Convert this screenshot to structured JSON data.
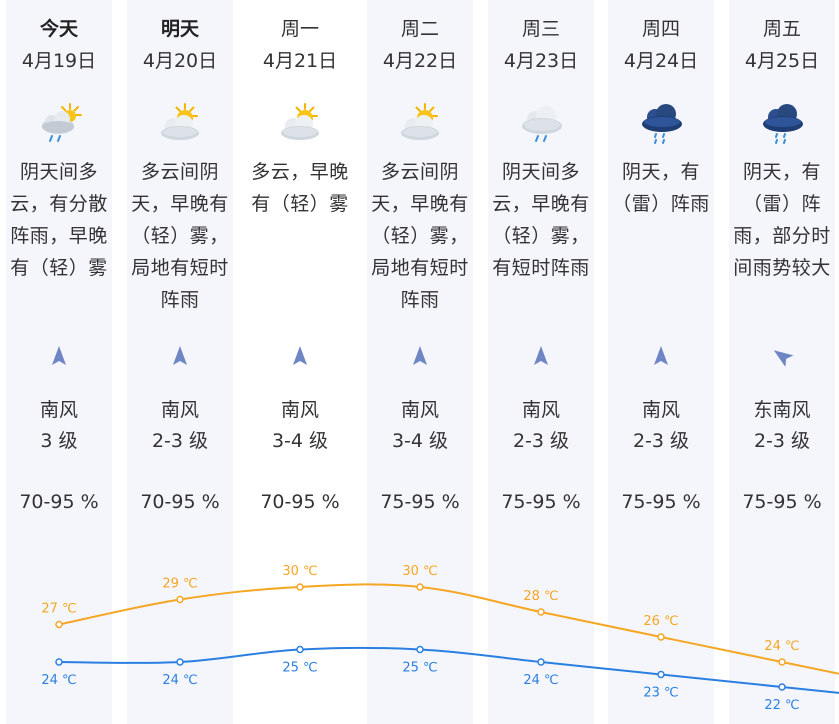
{
  "colors": {
    "high": "#f5a623",
    "low": "#2b7fe0",
    "column_shade": "#f4f6fc",
    "wind_arrow": "#6f86c4"
  },
  "days": [
    {
      "name": "今天",
      "date": "4月19日",
      "icon": "partly-cloudy-rain-icon",
      "desc_lines": [
        "阴天间多",
        "云，有分散",
        "阵雨，早晚",
        "有（轻）雾"
      ],
      "wind_icon": "wind-arrow-north-icon",
      "wind_angle": 0,
      "wind_dir": "南风",
      "wind_level": "3 级",
      "humidity": "70-95 %",
      "high": "27 ℃",
      "low": "24 ℃"
    },
    {
      "name": "明天",
      "date": "4月20日",
      "icon": "sun-cloud-icon",
      "desc_lines": [
        "多云间阴",
        "天，早晚有",
        "（轻）雾，",
        "局地有短时",
        "阵雨"
      ],
      "wind_icon": "wind-arrow-north-icon",
      "wind_angle": 0,
      "wind_dir": "南风",
      "wind_level": "2-3 级",
      "humidity": "70-95 %",
      "high": "29 ℃",
      "low": "24 ℃"
    },
    {
      "name": "周一",
      "date": "4月21日",
      "icon": "sun-cloud-icon",
      "desc_lines": [
        "多云，早晚",
        "有（轻）雾"
      ],
      "wind_icon": "wind-arrow-north-icon",
      "wind_angle": 0,
      "wind_dir": "南风",
      "wind_level": "3-4 级",
      "humidity": "70-95 %",
      "high": "30 ℃",
      "low": "25 ℃"
    },
    {
      "name": "周二",
      "date": "4月22日",
      "icon": "sun-cloud-icon",
      "desc_lines": [
        "多云间阴",
        "天，早晚有",
        "（轻）雾，",
        "局地有短时",
        "阵雨"
      ],
      "wind_icon": "wind-arrow-north-icon",
      "wind_angle": 0,
      "wind_dir": "南风",
      "wind_level": "3-4 级",
      "humidity": "75-95 %",
      "high": "30 ℃",
      "low": "25 ℃"
    },
    {
      "name": "周三",
      "date": "4月23日",
      "icon": "cloud-light-rain-icon",
      "desc_lines": [
        "阴天间多",
        "云，早晚有",
        "（轻）雾，",
        "有短时阵雨"
      ],
      "wind_icon": "wind-arrow-north-icon",
      "wind_angle": 0,
      "wind_dir": "南风",
      "wind_level": "2-3 级",
      "humidity": "75-95 %",
      "high": "28 ℃",
      "low": "24 ℃"
    },
    {
      "name": "周四",
      "date": "4月24日",
      "icon": "thunder-rain-icon",
      "desc_lines": [
        "阴天，有",
        "（雷）阵雨"
      ],
      "wind_icon": "wind-arrow-north-icon",
      "wind_angle": 0,
      "wind_dir": "南风",
      "wind_level": "2-3 级",
      "humidity": "75-95 %",
      "high": "26 ℃",
      "low": "23 ℃"
    },
    {
      "name": "周五",
      "date": "4月25日",
      "icon": "thunder-rain-icon",
      "desc_lines": [
        "阴天，有",
        "（雷）阵",
        "雨，部分时",
        "间雨势较大"
      ],
      "wind_icon": "wind-arrow-northwest-icon",
      "wind_angle": -55,
      "wind_dir": "东南风",
      "wind_level": "2-3 级",
      "humidity": "75-95 %",
      "high": "24 ℃",
      "low": "22 ℃"
    }
  ],
  "chart_data": {
    "type": "line",
    "categories": [
      "4月19日",
      "4月20日",
      "4月21日",
      "4月22日",
      "4月23日",
      "4月24日",
      "4月25日"
    ],
    "series": [
      {
        "values": [
          27,
          29,
          30,
          30,
          28,
          26,
          24
        ]
      },
      {
        "values": [
          24,
          24,
          25,
          25,
          24,
          23,
          22
        ]
      }
    ],
    "unit": "℃"
  }
}
